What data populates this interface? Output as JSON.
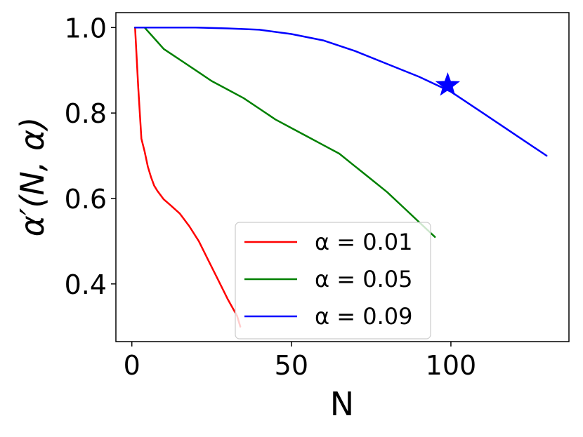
{
  "chart_data": {
    "type": "line",
    "xlabel": "N",
    "ylabel": "α′(N, α)",
    "xlim": [
      -5,
      137
    ],
    "ylim": [
      0.265,
      1.035
    ],
    "xticks": [
      0,
      50,
      100
    ],
    "xtick_labels": [
      "0",
      "50",
      "100"
    ],
    "yticks": [
      0.4,
      0.6,
      0.8,
      1.0
    ],
    "ytick_labels": [
      "0.4",
      "0.6",
      "0.8",
      "1.0"
    ],
    "grid": false,
    "legend_position": "lower-center",
    "series": [
      {
        "name": "α = 0.01",
        "color": "#ff0000",
        "x": [
          1,
          2,
          3,
          4,
          5,
          6,
          7,
          8,
          10,
          12,
          15,
          18,
          21,
          24,
          27,
          30,
          33,
          34
        ],
        "y": [
          1.0,
          0.86,
          0.74,
          0.71,
          0.675,
          0.65,
          0.63,
          0.618,
          0.598,
          0.585,
          0.565,
          0.535,
          0.5,
          0.455,
          0.41,
          0.365,
          0.325,
          0.3
        ]
      },
      {
        "name": "α = 0.05",
        "color": "#008000",
        "x": [
          1,
          4,
          7,
          10,
          13,
          16,
          20,
          25,
          30,
          35,
          40,
          45,
          50,
          55,
          60,
          65,
          70,
          75,
          80,
          85,
          90,
          95
        ],
        "y": [
          1.0,
          1.0,
          0.975,
          0.95,
          0.935,
          0.92,
          0.9,
          0.875,
          0.855,
          0.835,
          0.81,
          0.785,
          0.765,
          0.745,
          0.725,
          0.705,
          0.675,
          0.645,
          0.615,
          0.58,
          0.545,
          0.51
        ]
      },
      {
        "name": "α = 0.09",
        "color": "#0000ff",
        "x": [
          1,
          10,
          20,
          30,
          40,
          50,
          60,
          70,
          80,
          90,
          100,
          110,
          120,
          130
        ],
        "y": [
          1.0,
          1.0,
          1.0,
          0.998,
          0.995,
          0.985,
          0.97,
          0.945,
          0.915,
          0.885,
          0.85,
          0.8,
          0.75,
          0.7
        ]
      }
    ],
    "markers": [
      {
        "shape": "star",
        "x": 99,
        "y": 0.865,
        "color": "#0000ff"
      }
    ]
  }
}
